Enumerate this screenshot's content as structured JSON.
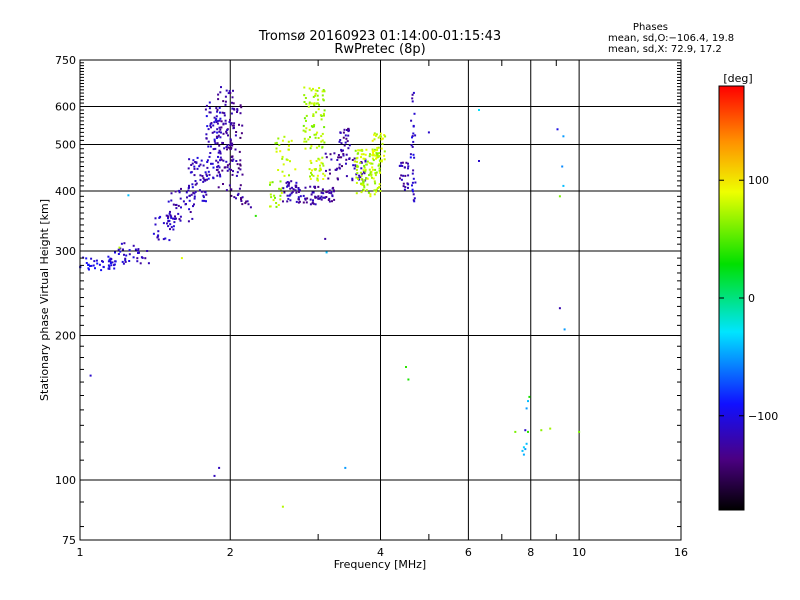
{
  "chart_data": {
    "type": "scatter",
    "title": "Tromsø 20160923 01:14:00-01:15:43",
    "subtitle": "RwPretec (8p)",
    "xlabel": "Frequency [MHz]",
    "ylabel": "Stationary phase Virtual Height [km]",
    "x_scale": "log",
    "y_scale": "log",
    "xlim": [
      1,
      16
    ],
    "ylim": [
      75,
      750
    ],
    "x_ticks": [
      1,
      2,
      4,
      6,
      8,
      10,
      16
    ],
    "x_tick_labels": [
      "1",
      "2",
      "4",
      "6",
      "8",
      "10",
      "16"
    ],
    "x_minor_ticks": [
      3,
      5,
      7,
      9
    ],
    "y_ticks": [
      75,
      100,
      200,
      300,
      400,
      500,
      600,
      750
    ],
    "y_tick_labels": [
      "75",
      "100",
      "200",
      "300",
      "400",
      "500",
      "600",
      "750"
    ],
    "grid": true,
    "colorbar": {
      "label": "[deg]",
      "range": [
        -180,
        180
      ],
      "ticks": [
        -100,
        0,
        100
      ],
      "tick_labels": [
        "−100",
        "0",
        "100"
      ]
    },
    "stats": {
      "heading": "Phases",
      "line1": "mean, sd,O:−106.4, 19.8",
      "line2": "mean, sd,X:  72.9, 17.2"
    },
    "clusters": [
      {
        "f": [
          1.0,
          1.18
        ],
        "h": [
          272,
          292
        ],
        "ph": -100,
        "n": 40
      },
      {
        "f": [
          1.15,
          1.38
        ],
        "h": [
          282,
          312
        ],
        "ph": -115,
        "n": 35
      },
      {
        "f": [
          1.4,
          1.55
        ],
        "h": [
          315,
          360
        ],
        "ph": -112,
        "n": 30
      },
      {
        "f": [
          1.5,
          1.7
        ],
        "h": [
          345,
          410
        ],
        "ph": -118,
        "n": 45
      },
      {
        "f": [
          1.65,
          1.8
        ],
        "h": [
          380,
          470
        ],
        "ph": -115,
        "n": 50
      },
      {
        "f": [
          1.78,
          1.92
        ],
        "h": [
          420,
          620
        ],
        "ph": -112,
        "n": 70
      },
      {
        "f": [
          1.88,
          2.03
        ],
        "h": [
          400,
          660
        ],
        "ph": -125,
        "n": 90
      },
      {
        "f": [
          2.0,
          2.12
        ],
        "h": [
          380,
          620
        ],
        "ph": -130,
        "n": 50
      },
      {
        "f": [
          2.1,
          2.18
        ],
        "h": [
          375,
          390
        ],
        "ph": -125,
        "n": 10
      },
      {
        "f": [
          2.38,
          2.55
        ],
        "h": [
          370,
          420
        ],
        "ph": 70,
        "n": 20
      },
      {
        "f": [
          2.45,
          2.7
        ],
        "h": [
          430,
          520
        ],
        "ph": 78,
        "n": 25
      },
      {
        "f": [
          2.55,
          2.75
        ],
        "h": [
          380,
          420
        ],
        "ph": -120,
        "n": 30
      },
      {
        "f": [
          2.7,
          3.05
        ],
        "h": [
          375,
          410
        ],
        "ph": -122,
        "n": 45
      },
      {
        "f": [
          2.8,
          3.1
        ],
        "h": [
          490,
          660
        ],
        "ph": 72,
        "n": 80
      },
      {
        "f": [
          2.88,
          3.1
        ],
        "h": [
          420,
          470
        ],
        "ph": 80,
        "n": 30
      },
      {
        "f": [
          3.05,
          3.25
        ],
        "h": [
          380,
          410
        ],
        "ph": -125,
        "n": 25
      },
      {
        "f": [
          3.1,
          3.35
        ],
        "h": [
          420,
          480
        ],
        "ph": -128,
        "n": 20
      },
      {
        "f": [
          3.3,
          3.5
        ],
        "h": [
          470,
          540
        ],
        "ph": -125,
        "n": 30
      },
      {
        "f": [
          3.4,
          3.75
        ],
        "h": [
          420,
          470
        ],
        "ph": -120,
        "n": 30
      },
      {
        "f": [
          3.55,
          4.0
        ],
        "h": [
          390,
          490
        ],
        "ph": 75,
        "n": 120
      },
      {
        "f": [
          3.85,
          4.1
        ],
        "h": [
          460,
          530
        ],
        "ph": 82,
        "n": 30
      },
      {
        "f": [
          4.35,
          4.55
        ],
        "h": [
          400,
          460
        ],
        "ph": -120,
        "n": 25
      },
      {
        "f": [
          4.6,
          4.7
        ],
        "h": [
          380,
          650
        ],
        "ph": -110,
        "n": 30
      }
    ],
    "points": [
      [
        1.05,
        165,
        -110
      ],
      [
        1.25,
        392,
        -40
      ],
      [
        1.2,
        305,
        75
      ],
      [
        1.6,
        290,
        85
      ],
      [
        2.2,
        370,
        -125
      ],
      [
        2.25,
        355,
        40
      ],
      [
        2.55,
        88,
        75
      ],
      [
        1.86,
        102,
        -115
      ],
      [
        1.9,
        106,
        -115
      ],
      [
        3.1,
        318,
        -125
      ],
      [
        3.12,
        298,
        -40
      ],
      [
        3.4,
        106,
        -50
      ],
      [
        4.5,
        172,
        40
      ],
      [
        4.55,
        162,
        35
      ],
      [
        6.3,
        590,
        -30
      ],
      [
        6.3,
        462,
        -110
      ],
      [
        5.0,
        530,
        -110
      ],
      [
        4.6,
        470,
        -90
      ],
      [
        7.7,
        115,
        -40
      ],
      [
        7.75,
        113,
        -45
      ],
      [
        7.8,
        116,
        -50
      ],
      [
        7.85,
        119,
        -40
      ],
      [
        7.75,
        117,
        -35
      ],
      [
        7.9,
        126,
        40
      ],
      [
        7.8,
        127,
        -110
      ],
      [
        7.85,
        141,
        -50
      ],
      [
        7.9,
        146,
        -40
      ],
      [
        7.95,
        149,
        35
      ],
      [
        7.45,
        126,
        60
      ],
      [
        8.4,
        127,
        65
      ],
      [
        8.75,
        128,
        70
      ],
      [
        10.0,
        126,
        60
      ],
      [
        9.05,
        538,
        -100
      ],
      [
        9.15,
        228,
        -120
      ],
      [
        9.35,
        206,
        -50
      ],
      [
        9.3,
        520,
        -50
      ],
      [
        9.25,
        450,
        -55
      ],
      [
        9.3,
        410,
        -40
      ],
      [
        9.15,
        390,
        60
      ]
    ]
  }
}
